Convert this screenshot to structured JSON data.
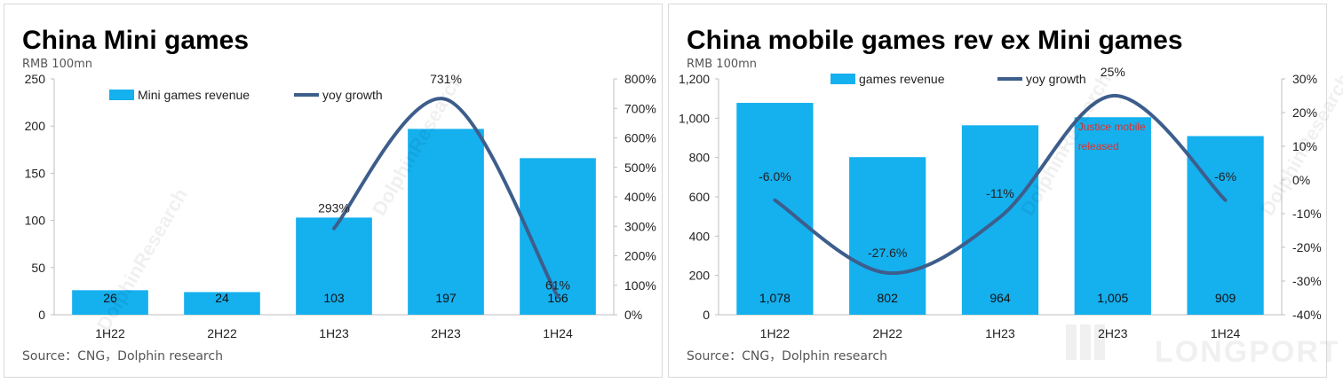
{
  "watermark_text": "DolphinResearch",
  "logo_text": "LONGPORT",
  "chart_data": [
    {
      "type": "bar",
      "title": "China Mini games",
      "unit_label": "RMB 100mn",
      "source": "Source：CNG，Dolphin research",
      "categories": [
        "1H22",
        "2H22",
        "1H23",
        "2H23",
        "1H24"
      ],
      "series": [
        {
          "name": "Mini games revenue",
          "kind": "bar",
          "axis": "left",
          "values": [
            26,
            24,
            103,
            197,
            166
          ],
          "labels": [
            "26",
            "24",
            "103",
            "197",
            "166"
          ]
        },
        {
          "name": "yoy growth",
          "kind": "line",
          "axis": "right",
          "values": [
            null,
            null,
            293,
            731,
            61
          ],
          "labels": [
            "",
            "",
            "293%",
            "731%",
            "61%"
          ]
        }
      ],
      "ylim": [
        0,
        250
      ],
      "yticks": [
        "0",
        "50",
        "100",
        "150",
        "200",
        "250"
      ],
      "y2lim": [
        0,
        800
      ],
      "y2ticks": [
        "0%",
        "100%",
        "200%",
        "300%",
        "400%",
        "500%",
        "600%",
        "700%",
        "800%"
      ],
      "legend": "top",
      "grid": false,
      "colors": {
        "bar": "#15b0ee",
        "line": "#3d5e8c"
      }
    },
    {
      "type": "bar",
      "title": "China mobile games rev ex Mini games",
      "unit_label": "RMB 100mn",
      "source": "Source：CNG，Dolphin research",
      "categories": [
        "1H22",
        "2H22",
        "1H23",
        "2H23",
        "1H24"
      ],
      "series": [
        {
          "name": "games revenue",
          "kind": "bar",
          "axis": "left",
          "values": [
            1078,
            802,
            964,
            1005,
            909
          ],
          "labels": [
            "1,078",
            "802",
            "964",
            "1,005",
            "909"
          ]
        },
        {
          "name": "yoy growth",
          "kind": "line",
          "axis": "right",
          "values": [
            -6.0,
            -27.6,
            -11,
            25,
            -6
          ],
          "labels": [
            "-6.0%",
            "-27.6%",
            "-11%",
            "25%",
            "-6%"
          ]
        }
      ],
      "ylim": [
        0,
        1200
      ],
      "yticks": [
        "0",
        "200",
        "400",
        "600",
        "800",
        "1,000",
        "1,200"
      ],
      "y2lim": [
        -40,
        30
      ],
      "y2ticks": [
        "-40%",
        "-30%",
        "-20%",
        "-10%",
        "0%",
        "10%",
        "20%",
        "30%"
      ],
      "annotation": "Justice mobile released",
      "legend": "top",
      "grid": false,
      "colors": {
        "bar": "#15b0ee",
        "line": "#3d5e8c",
        "annotation": "#e0302a"
      }
    }
  ]
}
